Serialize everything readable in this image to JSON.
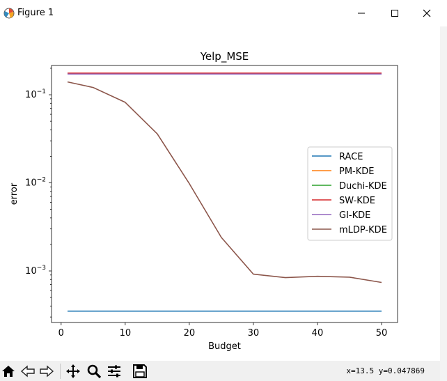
{
  "window": {
    "title": "Figure 1"
  },
  "chart_data": {
    "type": "line",
    "title": "Yelp_MSE",
    "xlabel": "Budget",
    "ylabel": "error",
    "yscale": "log",
    "xlim": [
      -1.5,
      52.5
    ],
    "ylim": [
      0.00026,
      0.215
    ],
    "xticks": [
      0,
      10,
      20,
      30,
      40,
      50
    ],
    "yticks": [
      {
        "value": 0.1,
        "base": "10",
        "exp": "−1"
      },
      {
        "value": 0.01,
        "base": "10",
        "exp": "−2"
      },
      {
        "value": 0.001,
        "base": "10",
        "exp": "−3"
      }
    ],
    "x": [
      1,
      5,
      10,
      15,
      20,
      25,
      30,
      35,
      40,
      45,
      50
    ],
    "legend_position": "center-right",
    "series": [
      {
        "name": "RACE",
        "color": "#1f77b4",
        "values": [
          0.00035,
          0.00035,
          0.00035,
          0.00035,
          0.00035,
          0.00035,
          0.00035,
          0.00035,
          0.00035,
          0.00035,
          0.00035
        ]
      },
      {
        "name": "PM-KDE",
        "color": "#ff7f0e",
        "values": [
          0.175,
          0.175,
          0.175,
          0.175,
          0.175,
          0.175,
          0.175,
          0.175,
          0.175,
          0.175,
          0.175
        ]
      },
      {
        "name": "Duchi-KDE",
        "color": "#2ca02c",
        "values": [
          0.174,
          0.174,
          0.174,
          0.174,
          0.174,
          0.174,
          0.174,
          0.174,
          0.174,
          0.174,
          0.174
        ]
      },
      {
        "name": "SW-KDE",
        "color": "#d62728",
        "values": [
          0.176,
          0.176,
          0.176,
          0.176,
          0.176,
          0.176,
          0.176,
          0.176,
          0.176,
          0.176,
          0.176
        ]
      },
      {
        "name": "GI-KDE",
        "color": "#9467bd",
        "values": [
          0.172,
          0.172,
          0.172,
          0.172,
          0.172,
          0.172,
          0.172,
          0.172,
          0.172,
          0.172,
          0.172
        ]
      },
      {
        "name": "mLDP-KDE",
        "color": "#8c564b",
        "values": [
          0.14,
          0.121,
          0.082,
          0.036,
          0.0098,
          0.0024,
          0.00092,
          0.00084,
          0.00087,
          0.00085,
          0.00074
        ]
      }
    ]
  },
  "toolbar": {
    "coords": "x=13.5 y=0.047869",
    "buttons": [
      "home-icon",
      "back-icon",
      "forward-icon",
      "pan-icon",
      "zoom-icon",
      "subplots-icon",
      "save-icon"
    ]
  }
}
